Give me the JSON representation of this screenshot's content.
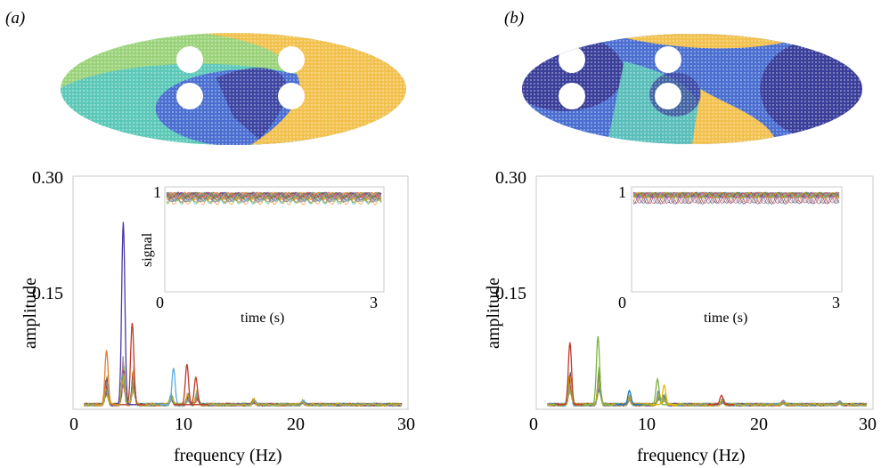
{
  "panels": [
    {
      "label": "(a)",
      "map": {
        "background_color": "#e9c46a",
        "colors": [
          "#3b3f9a",
          "#4a6fd1",
          "#3fa5d8",
          "#5cc8b8",
          "#9bd37a",
          "#f2c14e"
        ],
        "holes": 4
      },
      "chart": {
        "type": "line",
        "xlabel": "frequency (Hz)",
        "ylabel": "amplitude",
        "xlim": [
          0,
          30
        ],
        "ylim": [
          0,
          0.3
        ],
        "xticks": [
          "0",
          "10",
          "20",
          "30"
        ],
        "yticks": [
          "0.30",
          "0.15"
        ],
        "dominant_peaks": [
          {
            "x": 4.5,
            "y": 0.235,
            "color": "#4b3aa7"
          },
          {
            "x": 5.3,
            "y": 0.105,
            "color": "#c0392b"
          },
          {
            "x": 9.0,
            "y": 0.047,
            "color": "#5dade2"
          },
          {
            "x": 10.2,
            "y": 0.052,
            "color": "#c0392b"
          },
          {
            "x": 3.0,
            "y": 0.07,
            "color": "#e67e22"
          },
          {
            "x": 11.0,
            "y": 0.035,
            "color": "#c0392b"
          }
        ],
        "inset": {
          "xlabel": "time (s)",
          "ylabel": "signal",
          "xticks": [
            "0",
            "3"
          ],
          "ytick": "1"
        }
      }
    },
    {
      "label": "(b)",
      "map": {
        "background_color": "#e9c46a",
        "colors": [
          "#3b3f9a",
          "#4a6fd1",
          "#3fa5d8",
          "#5cc8b8",
          "#9bd37a",
          "#f2c14e"
        ],
        "holes": 4
      },
      "chart": {
        "type": "line",
        "xlabel": "frequency (Hz)",
        "ylabel": "amplitude",
        "xlim": [
          0,
          30
        ],
        "ylim": [
          0,
          0.3
        ],
        "xticks": [
          "0",
          "10",
          "20",
          "30"
        ],
        "yticks": [
          "0.30",
          "0.15"
        ],
        "dominant_peaks": [
          {
            "x": 3.0,
            "y": 0.08,
            "color": "#c0392b"
          },
          {
            "x": 5.5,
            "y": 0.088,
            "color": "#7cb342"
          },
          {
            "x": 8.3,
            "y": 0.018,
            "color": "#1f77b4"
          },
          {
            "x": 10.8,
            "y": 0.033,
            "color": "#7cb342"
          },
          {
            "x": 11.4,
            "y": 0.025,
            "color": "#e6b800"
          },
          {
            "x": 16.5,
            "y": 0.012,
            "color": "#c0392b"
          }
        ],
        "inset": {
          "xlabel": "time (s)",
          "ylabel": "",
          "xticks": [
            "0",
            "3"
          ],
          "ytick": "1"
        }
      }
    }
  ],
  "chart_data": [
    {
      "type": "line",
      "title": "",
      "xlabel": "frequency (Hz)",
      "ylabel": "amplitude",
      "xlim": [
        0,
        30
      ],
      "ylim": [
        0,
        0.3
      ],
      "peaks": [
        [
          4.5,
          0.235
        ],
        [
          5.3,
          0.105
        ],
        [
          3.0,
          0.07
        ],
        [
          9.0,
          0.047
        ],
        [
          10.2,
          0.052
        ],
        [
          11.0,
          0.035
        ],
        [
          16.5,
          0.015
        ],
        [
          20.5,
          0.01
        ]
      ]
    },
    {
      "type": "line",
      "title": "",
      "xlabel": "frequency (Hz)",
      "ylabel": "amplitude",
      "xlim": [
        0,
        30
      ],
      "ylim": [
        0,
        0.3
      ],
      "peaks": [
        [
          3.0,
          0.08
        ],
        [
          5.5,
          0.088
        ],
        [
          8.3,
          0.018
        ],
        [
          10.8,
          0.033
        ],
        [
          11.4,
          0.025
        ],
        [
          16.5,
          0.012
        ],
        [
          22,
          0.008
        ]
      ]
    }
  ]
}
